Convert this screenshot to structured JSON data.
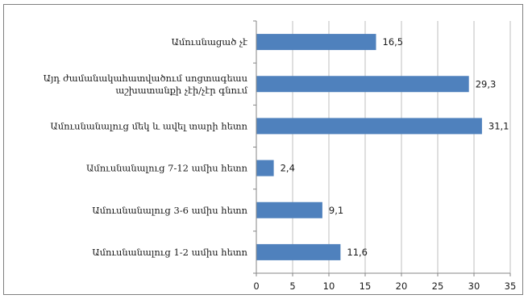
{
  "chart_data": {
    "type": "bar",
    "orientation": "horizontal",
    "categories": [
      "Ամուսնացած չէ",
      [
        "Այդ ժամանակահատվածում սոցտագեաս",
        "աշխատանքի չէի/չէր գնում"
      ],
      "Ամուսնանալուց մեկ և ավել տարի հետո",
      "Ամուսնանալուց 7-12 ամիս հետո",
      "Ամուսնանալուց 3-6 ամիս հետո",
      "Ամուսնանալուց 1-2 ամիս հետո"
    ],
    "values": [
      16.5,
      29.3,
      31.1,
      2.4,
      9.1,
      11.6
    ],
    "value_labels": [
      "16,5",
      "29,3",
      "31,1",
      "2,4",
      "9,1",
      "11,6"
    ],
    "xlim": [
      0,
      35
    ],
    "xticks": [
      "0",
      "5",
      "10",
      "15",
      "20",
      "25",
      "30",
      "35"
    ],
    "bar_color": "#4f81bd",
    "grid": true,
    "legend": "none",
    "title": "",
    "xlabel": "",
    "ylabel": ""
  }
}
